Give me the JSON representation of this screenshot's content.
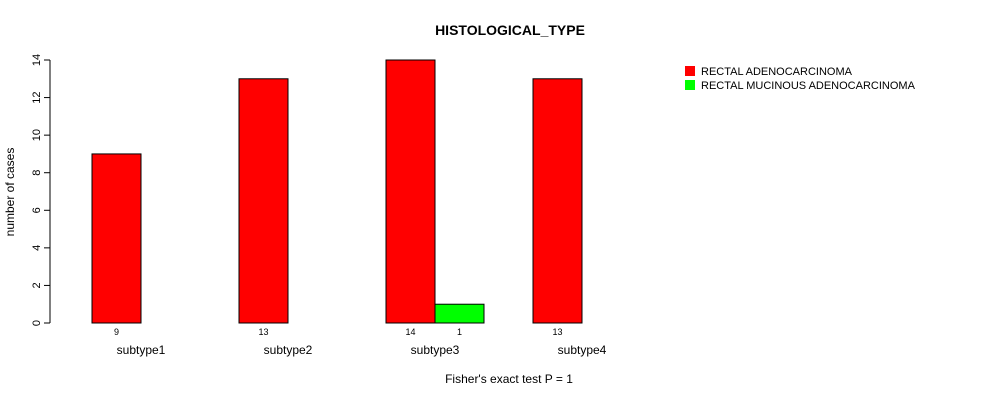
{
  "chart_data": {
    "type": "bar",
    "title": "HISTOLOGICAL_TYPE",
    "ylabel": "number of cases",
    "xlabel": "Fisher's exact test P = 1",
    "categories": [
      "subtype1",
      "subtype2",
      "subtype3",
      "subtype4"
    ],
    "series": [
      {
        "name": "RECTAL ADENOCARCINOMA",
        "color": "#ff0000",
        "values": [
          9,
          13,
          14,
          13
        ]
      },
      {
        "name": "RECTAL MUCINOUS ADENOCARCINOMA",
        "color": "#00ff00",
        "values": [
          0,
          0,
          1,
          0
        ]
      }
    ],
    "count_labels": [
      [
        "9",
        ""
      ],
      [
        "13",
        ""
      ],
      [
        "14",
        "1"
      ],
      [
        "13",
        ""
      ]
    ],
    "yticks": [
      0,
      2,
      4,
      6,
      8,
      10,
      12,
      14
    ],
    "ylim": [
      0,
      14
    ],
    "grid": false,
    "legend_position": "top-right"
  }
}
